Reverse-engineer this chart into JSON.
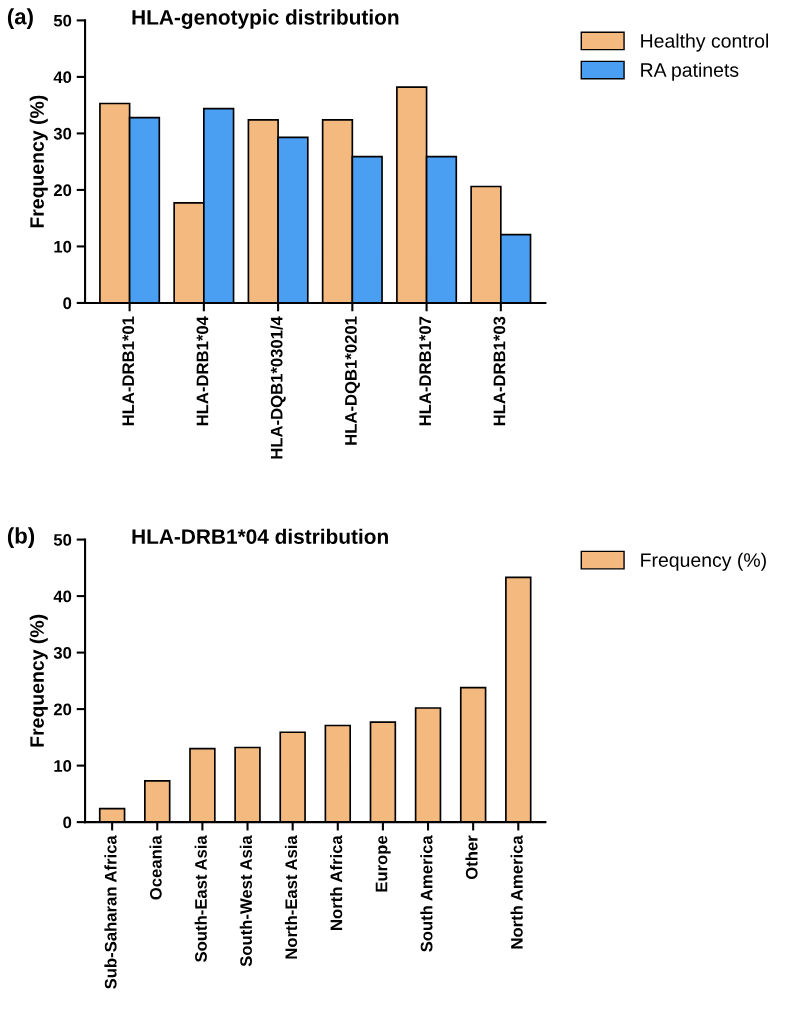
{
  "chart_data": [
    {
      "type": "bar",
      "title": "HLA-genotypic distribution",
      "ylabel": "Frequency (%)",
      "annotations": [
        "(a)"
      ],
      "categories": [
        "HLA-DRB1*01",
        "HLA-DRB1*04",
        "HLA-DQB1*0301/4",
        "HLA-DQB1*0201",
        "HLA-DRB1*07",
        "HLA-DRB1*03"
      ],
      "series": [
        {
          "name": "Healthy control",
          "color": "#f4b97f",
          "values": [
            35.3,
            17.7,
            32.4,
            32.4,
            38.2,
            20.6
          ]
        },
        {
          "name": "RA patinets",
          "color": "#4a9ff2",
          "values": [
            32.8,
            34.4,
            29.3,
            25.9,
            25.9,
            12.1
          ]
        }
      ],
      "ylim": [
        0,
        50
      ],
      "yticks": [
        0,
        10,
        20,
        30,
        40,
        50
      ],
      "grid": false,
      "legend": "top right"
    },
    {
      "type": "bar",
      "title": "HLA-DRB1*04 distribution",
      "ylabel": "Frequency (%)",
      "annotations": [
        "(b)"
      ],
      "categories": [
        "Sub-Saharan Africa",
        "Oceania",
        "South-East Asia",
        "South-West Asia",
        "North-East Asia",
        "North Africa",
        "Europe",
        "South America",
        "Other",
        "North America"
      ],
      "series": [
        {
          "name": "Frequency (%)",
          "color": "#f4b97f",
          "values": [
            2.4,
            7.3,
            13.0,
            13.2,
            15.9,
            17.1,
            17.7,
            20.2,
            23.8,
            43.3
          ]
        }
      ],
      "ylim": [
        0,
        50
      ],
      "yticks": [
        0,
        10,
        20,
        30,
        40,
        50
      ],
      "grid": false,
      "legend": "top right"
    }
  ]
}
